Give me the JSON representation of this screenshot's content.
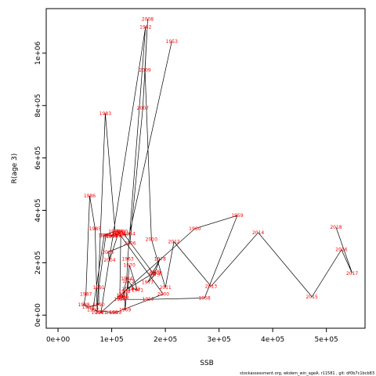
{
  "chart_data": {
    "type": "line",
    "xlabel": "SSB",
    "ylabel": "R(age 3)",
    "footer": "stockassessment.org, wkdem_win_ageA, r11581 , git: df0b7c1bcb83",
    "xlim": [
      -22000,
      572000
    ],
    "ylim": [
      -50000,
      1170000
    ],
    "x_ticks": [
      {
        "value": 0,
        "label": "0e+00"
      },
      {
        "value": 100000,
        "label": "1e+05"
      },
      {
        "value": 200000,
        "label": "2e+05"
      },
      {
        "value": 300000,
        "label": "3e+05"
      },
      {
        "value": 400000,
        "label": "4e+05"
      },
      {
        "value": 500000,
        "label": "5e+05"
      }
    ],
    "y_ticks": [
      {
        "value": 0,
        "label": "0e+00"
      },
      {
        "value": 200000,
        "label": "2e+05"
      },
      {
        "value": 400000,
        "label": "4e+05"
      },
      {
        "value": 600000,
        "label": "6e+05"
      },
      {
        "value": 800000,
        "label": "8e+05"
      },
      {
        "value": 1000000,
        "label": "1e+06"
      }
    ],
    "line_color": "#000000",
    "label_color": "#ff0000",
    "points": [
      {
        "year": "1953",
        "x": 212000,
        "y": 1045000
      },
      {
        "year": "1954",
        "x": 133000,
        "y": 310000
      },
      {
        "year": "1955",
        "x": 117000,
        "y": 305000
      },
      {
        "year": "1956",
        "x": 115000,
        "y": 60000
      },
      {
        "year": "1957",
        "x": 168000,
        "y": 60000
      },
      {
        "year": "1958",
        "x": 273000,
        "y": 65000
      },
      {
        "year": "1959",
        "x": 334000,
        "y": 380000
      },
      {
        "year": "1960",
        "x": 255000,
        "y": 330000
      },
      {
        "year": "1961",
        "x": 80000,
        "y": 10000
      },
      {
        "year": "1962",
        "x": 163000,
        "y": 1100000
      },
      {
        "year": "1963",
        "x": 130000,
        "y": 215000
      },
      {
        "year": "1964",
        "x": 128000,
        "y": 140000
      },
      {
        "year": "1965",
        "x": 120000,
        "y": 65000
      },
      {
        "year": "1966",
        "x": 121000,
        "y": 70000
      },
      {
        "year": "1967",
        "x": 120000,
        "y": 75000
      },
      {
        "year": "1968",
        "x": 124000,
        "y": 90000
      },
      {
        "year": "1969",
        "x": 125000,
        "y": 20000
      },
      {
        "year": "1970",
        "x": 133000,
        "y": 190000
      },
      {
        "year": "1971",
        "x": 148000,
        "y": 95000
      },
      {
        "year": "1972",
        "x": 142000,
        "y": 100000
      },
      {
        "year": "1973",
        "x": 131000,
        "y": 130000
      },
      {
        "year": "1974",
        "x": 130000,
        "y": 100000
      },
      {
        "year": "1975",
        "x": 181000,
        "y": 165000
      },
      {
        "year": "1976",
        "x": 183000,
        "y": 160000
      },
      {
        "year": "1977",
        "x": 167000,
        "y": 125000
      },
      {
        "year": "1978",
        "x": 190000,
        "y": 215000
      },
      {
        "year": "1979",
        "x": 179000,
        "y": 155000
      },
      {
        "year": "1980",
        "x": 119000,
        "y": 320000
      },
      {
        "year": "1981",
        "x": 112000,
        "y": 310000
      },
      {
        "year": "1982",
        "x": 107000,
        "y": 305000
      },
      {
        "year": "1983",
        "x": 88000,
        "y": 770000
      },
      {
        "year": "1984",
        "x": 73000,
        "y": 10000
      },
      {
        "year": "1985",
        "x": 69000,
        "y": 330000
      },
      {
        "year": "1986",
        "x": 59000,
        "y": 455000
      },
      {
        "year": "1987",
        "x": 52000,
        "y": 80000
      },
      {
        "year": "1988",
        "x": 48000,
        "y": 40000
      },
      {
        "year": "1989",
        "x": 56000,
        "y": 30000
      },
      {
        "year": "1990",
        "x": 76000,
        "y": 40000
      },
      {
        "year": "1991",
        "x": 76000,
        "y": 105000
      },
      {
        "year": "1992",
        "x": 89000,
        "y": 305000
      },
      {
        "year": "1993",
        "x": 100000,
        "y": 305000
      },
      {
        "year": "1994",
        "x": 100000,
        "y": 300000
      },
      {
        "year": "1995",
        "x": 105000,
        "y": 320000
      },
      {
        "year": "1996",
        "x": 86000,
        "y": 305000
      },
      {
        "year": "1997",
        "x": 65000,
        "y": 20000
      },
      {
        "year": "1998",
        "x": 100000,
        "y": 10000
      },
      {
        "year": "1999",
        "x": 107000,
        "y": 10000
      },
      {
        "year": "2000",
        "x": 196000,
        "y": 80000
      },
      {
        "year": "2001",
        "x": 111000,
        "y": 320000
      },
      {
        "year": "2002",
        "x": 115000,
        "y": 315000
      },
      {
        "year": "2003",
        "x": 112000,
        "y": 310000
      },
      {
        "year": "2004",
        "x": 96000,
        "y": 210000
      },
      {
        "year": "2005",
        "x": 93000,
        "y": 240000
      },
      {
        "year": "2006",
        "x": 134000,
        "y": 275000
      },
      {
        "year": "2007",
        "x": 158000,
        "y": 790000
      },
      {
        "year": "2008",
        "x": 167000,
        "y": 1130000
      },
      {
        "year": "2009",
        "x": 162000,
        "y": 935000
      },
      {
        "year": "2010",
        "x": 174000,
        "y": 290000
      },
      {
        "year": "2011",
        "x": 200000,
        "y": 105000
      },
      {
        "year": "2012",
        "x": 216000,
        "y": 280000
      },
      {
        "year": "2013",
        "x": 285000,
        "y": 110000
      },
      {
        "year": "2014",
        "x": 373000,
        "y": 315000
      },
      {
        "year": "2015",
        "x": 473000,
        "y": 70000
      },
      {
        "year": "2016",
        "x": 528000,
        "y": 250000
      },
      {
        "year": "2017",
        "x": 548000,
        "y": 160000
      },
      {
        "year": "2018",
        "x": 518000,
        "y": 335000
      }
    ]
  }
}
